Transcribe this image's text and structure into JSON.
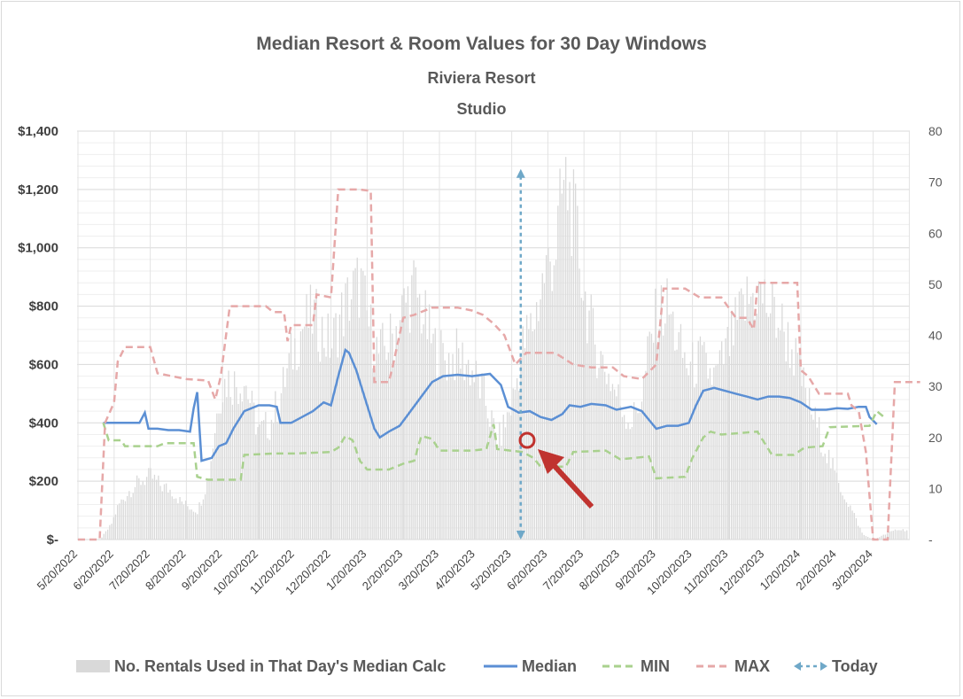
{
  "chart_data": {
    "type": "line",
    "title": "Median Resort & Room Values for 30 Day Windows",
    "subtitle": "Riviera Resort",
    "subtitle2": "Studio",
    "y_ticks": [
      "$-",
      "$200",
      "$400",
      "$600",
      "$800",
      "$1,000",
      "$1,200",
      "$1,400"
    ],
    "ylim": [
      0,
      1400
    ],
    "y2_ticks": [
      "-",
      "10",
      "20",
      "30",
      "40",
      "50",
      "60",
      "70",
      "80"
    ],
    "y2lim": [
      0,
      80
    ],
    "x_tick_labels": [
      "5/20/2022",
      "6/20/2022",
      "7/20/2022",
      "8/20/2022",
      "9/20/2022",
      "10/20/2022",
      "11/20/2022",
      "12/20/2022",
      "1/20/2023",
      "2/20/2023",
      "3/20/2023",
      "4/20/2023",
      "5/20/2023",
      "6/20/2023",
      "7/20/2023",
      "8/20/2023",
      "9/20/2023",
      "10/20/2023",
      "11/20/2023",
      "12/20/2023",
      "1/20/2024",
      "2/20/2024",
      "3/20/2024"
    ],
    "grid": true,
    "legend_position": "bottom",
    "series": [
      {
        "name": "No. Rentals Used in That Day's Median Calc",
        "kind": "bar",
        "axis": "secondary",
        "color": "#d9d9d9",
        "points": [
          [
            0,
            0
          ],
          [
            0.6,
            0
          ],
          [
            0.7,
            1
          ],
          [
            0.9,
            3
          ],
          [
            1.1,
            7
          ],
          [
            1.4,
            10
          ],
          [
            1.7,
            12
          ],
          [
            2.0,
            13
          ],
          [
            2.3,
            11
          ],
          [
            2.6,
            10
          ],
          [
            2.8,
            8
          ],
          [
            3.0,
            7
          ],
          [
            3.3,
            6
          ],
          [
            3.6,
            13
          ],
          [
            3.9,
            30
          ],
          [
            4.1,
            33
          ],
          [
            4.4,
            32
          ],
          [
            4.6,
            33
          ],
          [
            4.8,
            27
          ],
          [
            5.0,
            22
          ],
          [
            5.3,
            24
          ],
          [
            5.6,
            30
          ],
          [
            5.9,
            38
          ],
          [
            6.2,
            44
          ],
          [
            6.5,
            46
          ],
          [
            6.8,
            42
          ],
          [
            7.0,
            40
          ],
          [
            7.2,
            45
          ],
          [
            7.5,
            50
          ],
          [
            7.8,
            53
          ],
          [
            8.0,
            45
          ],
          [
            8.3,
            38
          ],
          [
            8.7,
            42
          ],
          [
            9.0,
            48
          ],
          [
            9.3,
            52
          ],
          [
            9.5,
            47
          ],
          [
            9.8,
            40
          ],
          [
            10.2,
            37
          ],
          [
            10.5,
            38
          ],
          [
            10.8,
            36
          ],
          [
            11.2,
            30
          ],
          [
            11.6,
            20
          ],
          [
            12.0,
            28
          ],
          [
            12.3,
            40
          ],
          [
            12.6,
            45
          ],
          [
            12.9,
            55
          ],
          [
            13.2,
            60
          ],
          [
            13.4,
            72
          ],
          [
            13.5,
            73
          ],
          [
            13.6,
            70
          ],
          [
            13.8,
            62
          ],
          [
            14.0,
            50
          ],
          [
            14.3,
            40
          ],
          [
            14.6,
            35
          ],
          [
            15.0,
            28
          ],
          [
            15.3,
            24
          ],
          [
            15.6,
            30
          ],
          [
            15.8,
            40
          ],
          [
            16.0,
            46
          ],
          [
            16.3,
            48
          ],
          [
            16.6,
            40
          ],
          [
            16.9,
            35
          ],
          [
            17.2,
            37
          ],
          [
            17.6,
            33
          ],
          [
            18.0,
            40
          ],
          [
            18.3,
            46
          ],
          [
            18.5,
            49
          ],
          [
            18.8,
            51
          ],
          [
            19.1,
            48
          ],
          [
            19.4,
            45
          ],
          [
            19.8,
            38
          ],
          [
            20.2,
            28
          ],
          [
            20.6,
            20
          ],
          [
            21.0,
            12
          ],
          [
            21.4,
            6
          ],
          [
            21.7,
            1
          ],
          [
            22.0,
            0
          ],
          [
            22.3,
            1
          ],
          [
            22.6,
            2
          ],
          [
            22.9,
            2
          ]
        ]
      },
      {
        "name": "Median",
        "kind": "line",
        "axis": "primary",
        "color": "#5b8fd4",
        "points": [
          [
            0.7,
            400
          ],
          [
            1.0,
            400
          ],
          [
            1.3,
            400
          ],
          [
            1.7,
            400
          ],
          [
            1.85,
            435
          ],
          [
            1.95,
            380
          ],
          [
            2.2,
            380
          ],
          [
            2.5,
            375
          ],
          [
            2.8,
            375
          ],
          [
            3.1,
            370
          ],
          [
            3.2,
            450
          ],
          [
            3.3,
            505
          ],
          [
            3.42,
            270
          ],
          [
            3.7,
            280
          ],
          [
            3.9,
            320
          ],
          [
            4.1,
            330
          ],
          [
            4.3,
            380
          ],
          [
            4.6,
            440
          ],
          [
            5.0,
            460
          ],
          [
            5.3,
            460
          ],
          [
            5.5,
            455
          ],
          [
            5.6,
            400
          ],
          [
            5.9,
            400
          ],
          [
            6.2,
            420
          ],
          [
            6.5,
            440
          ],
          [
            6.8,
            470
          ],
          [
            7.0,
            460
          ],
          [
            7.2,
            560
          ],
          [
            7.4,
            650
          ],
          [
            7.5,
            640
          ],
          [
            7.7,
            580
          ],
          [
            8.0,
            460
          ],
          [
            8.2,
            380
          ],
          [
            8.35,
            350
          ],
          [
            8.6,
            370
          ],
          [
            8.9,
            390
          ],
          [
            9.2,
            440
          ],
          [
            9.5,
            490
          ],
          [
            9.8,
            540
          ],
          [
            10.1,
            560
          ],
          [
            10.5,
            565
          ],
          [
            10.9,
            560
          ],
          [
            11.4,
            568
          ],
          [
            11.7,
            530
          ],
          [
            11.9,
            455
          ],
          [
            12.2,
            435
          ],
          [
            12.5,
            440
          ],
          [
            12.8,
            420
          ],
          [
            13.1,
            410
          ],
          [
            13.4,
            430
          ],
          [
            13.6,
            460
          ],
          [
            13.9,
            455
          ],
          [
            14.2,
            465
          ],
          [
            14.6,
            460
          ],
          [
            14.9,
            445
          ],
          [
            15.3,
            455
          ],
          [
            15.6,
            440
          ],
          [
            15.8,
            410
          ],
          [
            16.0,
            380
          ],
          [
            16.3,
            390
          ],
          [
            16.6,
            390
          ],
          [
            16.9,
            400
          ],
          [
            17.1,
            460
          ],
          [
            17.3,
            510
          ],
          [
            17.6,
            520
          ],
          [
            17.9,
            510
          ],
          [
            18.2,
            500
          ],
          [
            18.5,
            490
          ],
          [
            18.8,
            480
          ],
          [
            19.1,
            490
          ],
          [
            19.4,
            490
          ],
          [
            19.7,
            485
          ],
          [
            20.0,
            470
          ],
          [
            20.3,
            445
          ],
          [
            20.7,
            445
          ],
          [
            21.0,
            450
          ],
          [
            21.3,
            448
          ],
          [
            21.6,
            455
          ],
          [
            21.8,
            455
          ],
          [
            21.9,
            420
          ],
          [
            22.1,
            395
          ]
        ]
      },
      {
        "name": "MIN",
        "kind": "line",
        "dash": true,
        "axis": "primary",
        "color": "#a9d18e",
        "points": [
          [
            0.7,
            400
          ],
          [
            0.85,
            340
          ],
          [
            1.2,
            340
          ],
          [
            1.3,
            320
          ],
          [
            2.2,
            320
          ],
          [
            2.4,
            330
          ],
          [
            3.2,
            330
          ],
          [
            3.3,
            215
          ],
          [
            3.6,
            205
          ],
          [
            4.5,
            205
          ],
          [
            4.6,
            290
          ],
          [
            5.4,
            295
          ],
          [
            6.0,
            295
          ],
          [
            7.0,
            300
          ],
          [
            7.2,
            315
          ],
          [
            7.4,
            355
          ],
          [
            7.6,
            340
          ],
          [
            7.8,
            270
          ],
          [
            8.0,
            240
          ],
          [
            8.6,
            240
          ],
          [
            9.0,
            260
          ],
          [
            9.3,
            270
          ],
          [
            9.5,
            355
          ],
          [
            9.8,
            345
          ],
          [
            10.0,
            305
          ],
          [
            10.9,
            305
          ],
          [
            11.3,
            310
          ],
          [
            11.5,
            395
          ],
          [
            11.6,
            310
          ],
          [
            12.3,
            300
          ],
          [
            12.6,
            280
          ],
          [
            12.8,
            250
          ],
          [
            13.5,
            250
          ],
          [
            13.7,
            300
          ],
          [
            14.6,
            305
          ],
          [
            15.0,
            275
          ],
          [
            15.8,
            285
          ],
          [
            16.0,
            210
          ],
          [
            16.8,
            215
          ],
          [
            17.0,
            280
          ],
          [
            17.3,
            350
          ],
          [
            17.5,
            370
          ],
          [
            17.8,
            360
          ],
          [
            18.8,
            370
          ],
          [
            19.2,
            290
          ],
          [
            19.8,
            290
          ],
          [
            20.1,
            315
          ],
          [
            20.6,
            320
          ],
          [
            20.8,
            385
          ],
          [
            21.9,
            390
          ],
          [
            22.1,
            440
          ],
          [
            22.3,
            420
          ]
        ]
      },
      {
        "name": "MAX",
        "kind": "line",
        "dash": true,
        "axis": "primary",
        "color": "#e6a8a8",
        "points": [
          [
            0,
            0
          ],
          [
            0.6,
            0
          ],
          [
            0.75,
            400
          ],
          [
            1.0,
            470
          ],
          [
            1.1,
            610
          ],
          [
            1.3,
            660
          ],
          [
            2.0,
            660
          ],
          [
            2.2,
            570
          ],
          [
            2.6,
            560
          ],
          [
            3.0,
            550
          ],
          [
            3.6,
            545
          ],
          [
            3.8,
            480
          ],
          [
            3.95,
            560
          ],
          [
            4.2,
            800
          ],
          [
            5.2,
            800
          ],
          [
            5.4,
            780
          ],
          [
            5.7,
            780
          ],
          [
            5.8,
            680
          ],
          [
            5.9,
            735
          ],
          [
            6.5,
            735
          ],
          [
            6.6,
            840
          ],
          [
            7.0,
            830
          ],
          [
            7.2,
            1200
          ],
          [
            7.8,
            1200
          ],
          [
            8.1,
            1195
          ],
          [
            8.2,
            540
          ],
          [
            8.6,
            540
          ],
          [
            8.7,
            590
          ],
          [
            9.0,
            760
          ],
          [
            9.3,
            770
          ],
          [
            9.8,
            795
          ],
          [
            10.5,
            795
          ],
          [
            10.9,
            785
          ],
          [
            11.2,
            770
          ],
          [
            11.5,
            740
          ],
          [
            11.8,
            700
          ],
          [
            12.1,
            600
          ],
          [
            12.4,
            640
          ],
          [
            12.6,
            640
          ],
          [
            13.2,
            640
          ],
          [
            13.7,
            600
          ],
          [
            14.2,
            590
          ],
          [
            14.8,
            590
          ],
          [
            15.1,
            560
          ],
          [
            15.6,
            550
          ],
          [
            16.0,
            600
          ],
          [
            16.2,
            860
          ],
          [
            16.8,
            860
          ],
          [
            17.2,
            830
          ],
          [
            17.8,
            830
          ],
          [
            18.2,
            760
          ],
          [
            18.5,
            760
          ],
          [
            18.7,
            720
          ],
          [
            18.8,
            880
          ],
          [
            19.9,
            880
          ],
          [
            20.0,
            580
          ],
          [
            20.2,
            560
          ],
          [
            20.5,
            500
          ],
          [
            21.3,
            500
          ],
          [
            21.4,
            460
          ],
          [
            21.6,
            440
          ],
          [
            21.8,
            300
          ],
          [
            22.0,
            0
          ],
          [
            22.4,
            0
          ],
          [
            22.6,
            540
          ],
          [
            23.3,
            540
          ]
        ]
      },
      {
        "name": "Today",
        "kind": "vertical-marker",
        "axis": "primary",
        "color": "#6fa8c8",
        "x": 12.25,
        "y_range": [
          0,
          1270
        ]
      }
    ]
  }
}
